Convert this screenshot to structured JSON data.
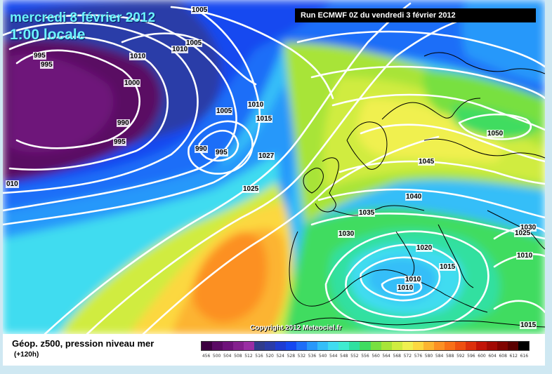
{
  "header": {
    "date": "mercredi 8 février 2012",
    "time": "1:00 locale",
    "run": "Run ECMWF 0Z du vendredi 3 février 2012"
  },
  "copyright": "Copyright 2012 Meteociel.fr",
  "legend": {
    "title": "Géop. z500, pression niveau mer",
    "subtitle": "(+120h)",
    "scale_labels": [
      "456",
      "500",
      "504",
      "508",
      "512",
      "516",
      "520",
      "524",
      "528",
      "532",
      "536",
      "540",
      "544",
      "548",
      "552",
      "556",
      "560",
      "564",
      "568",
      "572",
      "576",
      "580",
      "584",
      "588",
      "592",
      "596",
      "600",
      "604",
      "608",
      "612",
      "616"
    ],
    "scale_colors": [
      "#3c0040",
      "#5a0a64",
      "#6e127a",
      "#84208e",
      "#9a2ea4",
      "#303c8c",
      "#2a3ca8",
      "#1e3cd2",
      "#1448f0",
      "#1e6ef8",
      "#2898fa",
      "#34bef8",
      "#40dcf0",
      "#40ecd0",
      "#30e0a0",
      "#40dc60",
      "#78e040",
      "#a8e438",
      "#d0ec40",
      "#f0f050",
      "#fcd840",
      "#fcb430",
      "#fc9024",
      "#f87018",
      "#ee5010",
      "#dc300c",
      "#c21408",
      "#a20a04",
      "#800400",
      "#5a0000",
      "#000000"
    ]
  },
  "isobars": [
    {
      "text": "1005"
    },
    {
      "text": "1010"
    },
    {
      "text": "1005"
    },
    {
      "text": "1010"
    },
    {
      "text": "995"
    },
    {
      "text": "995"
    },
    {
      "text": "1000"
    },
    {
      "text": "1005"
    },
    {
      "text": "1010"
    },
    {
      "text": "1015"
    },
    {
      "text": "990"
    },
    {
      "text": "995"
    },
    {
      "text": "990"
    },
    {
      "text": "995"
    },
    {
      "text": "1027"
    },
    {
      "text": "1025"
    },
    {
      "text": "010"
    },
    {
      "text": "1045"
    },
    {
      "text": "1050"
    },
    {
      "text": "1040"
    },
    {
      "text": "1035"
    },
    {
      "text": "1030"
    },
    {
      "text": "1020"
    },
    {
      "text": "1015"
    },
    {
      "text": "1010"
    },
    {
      "text": "1010"
    },
    {
      "text": "1030"
    },
    {
      "text": "1025"
    },
    {
      "text": "1010"
    },
    {
      "text": "1015"
    }
  ]
}
